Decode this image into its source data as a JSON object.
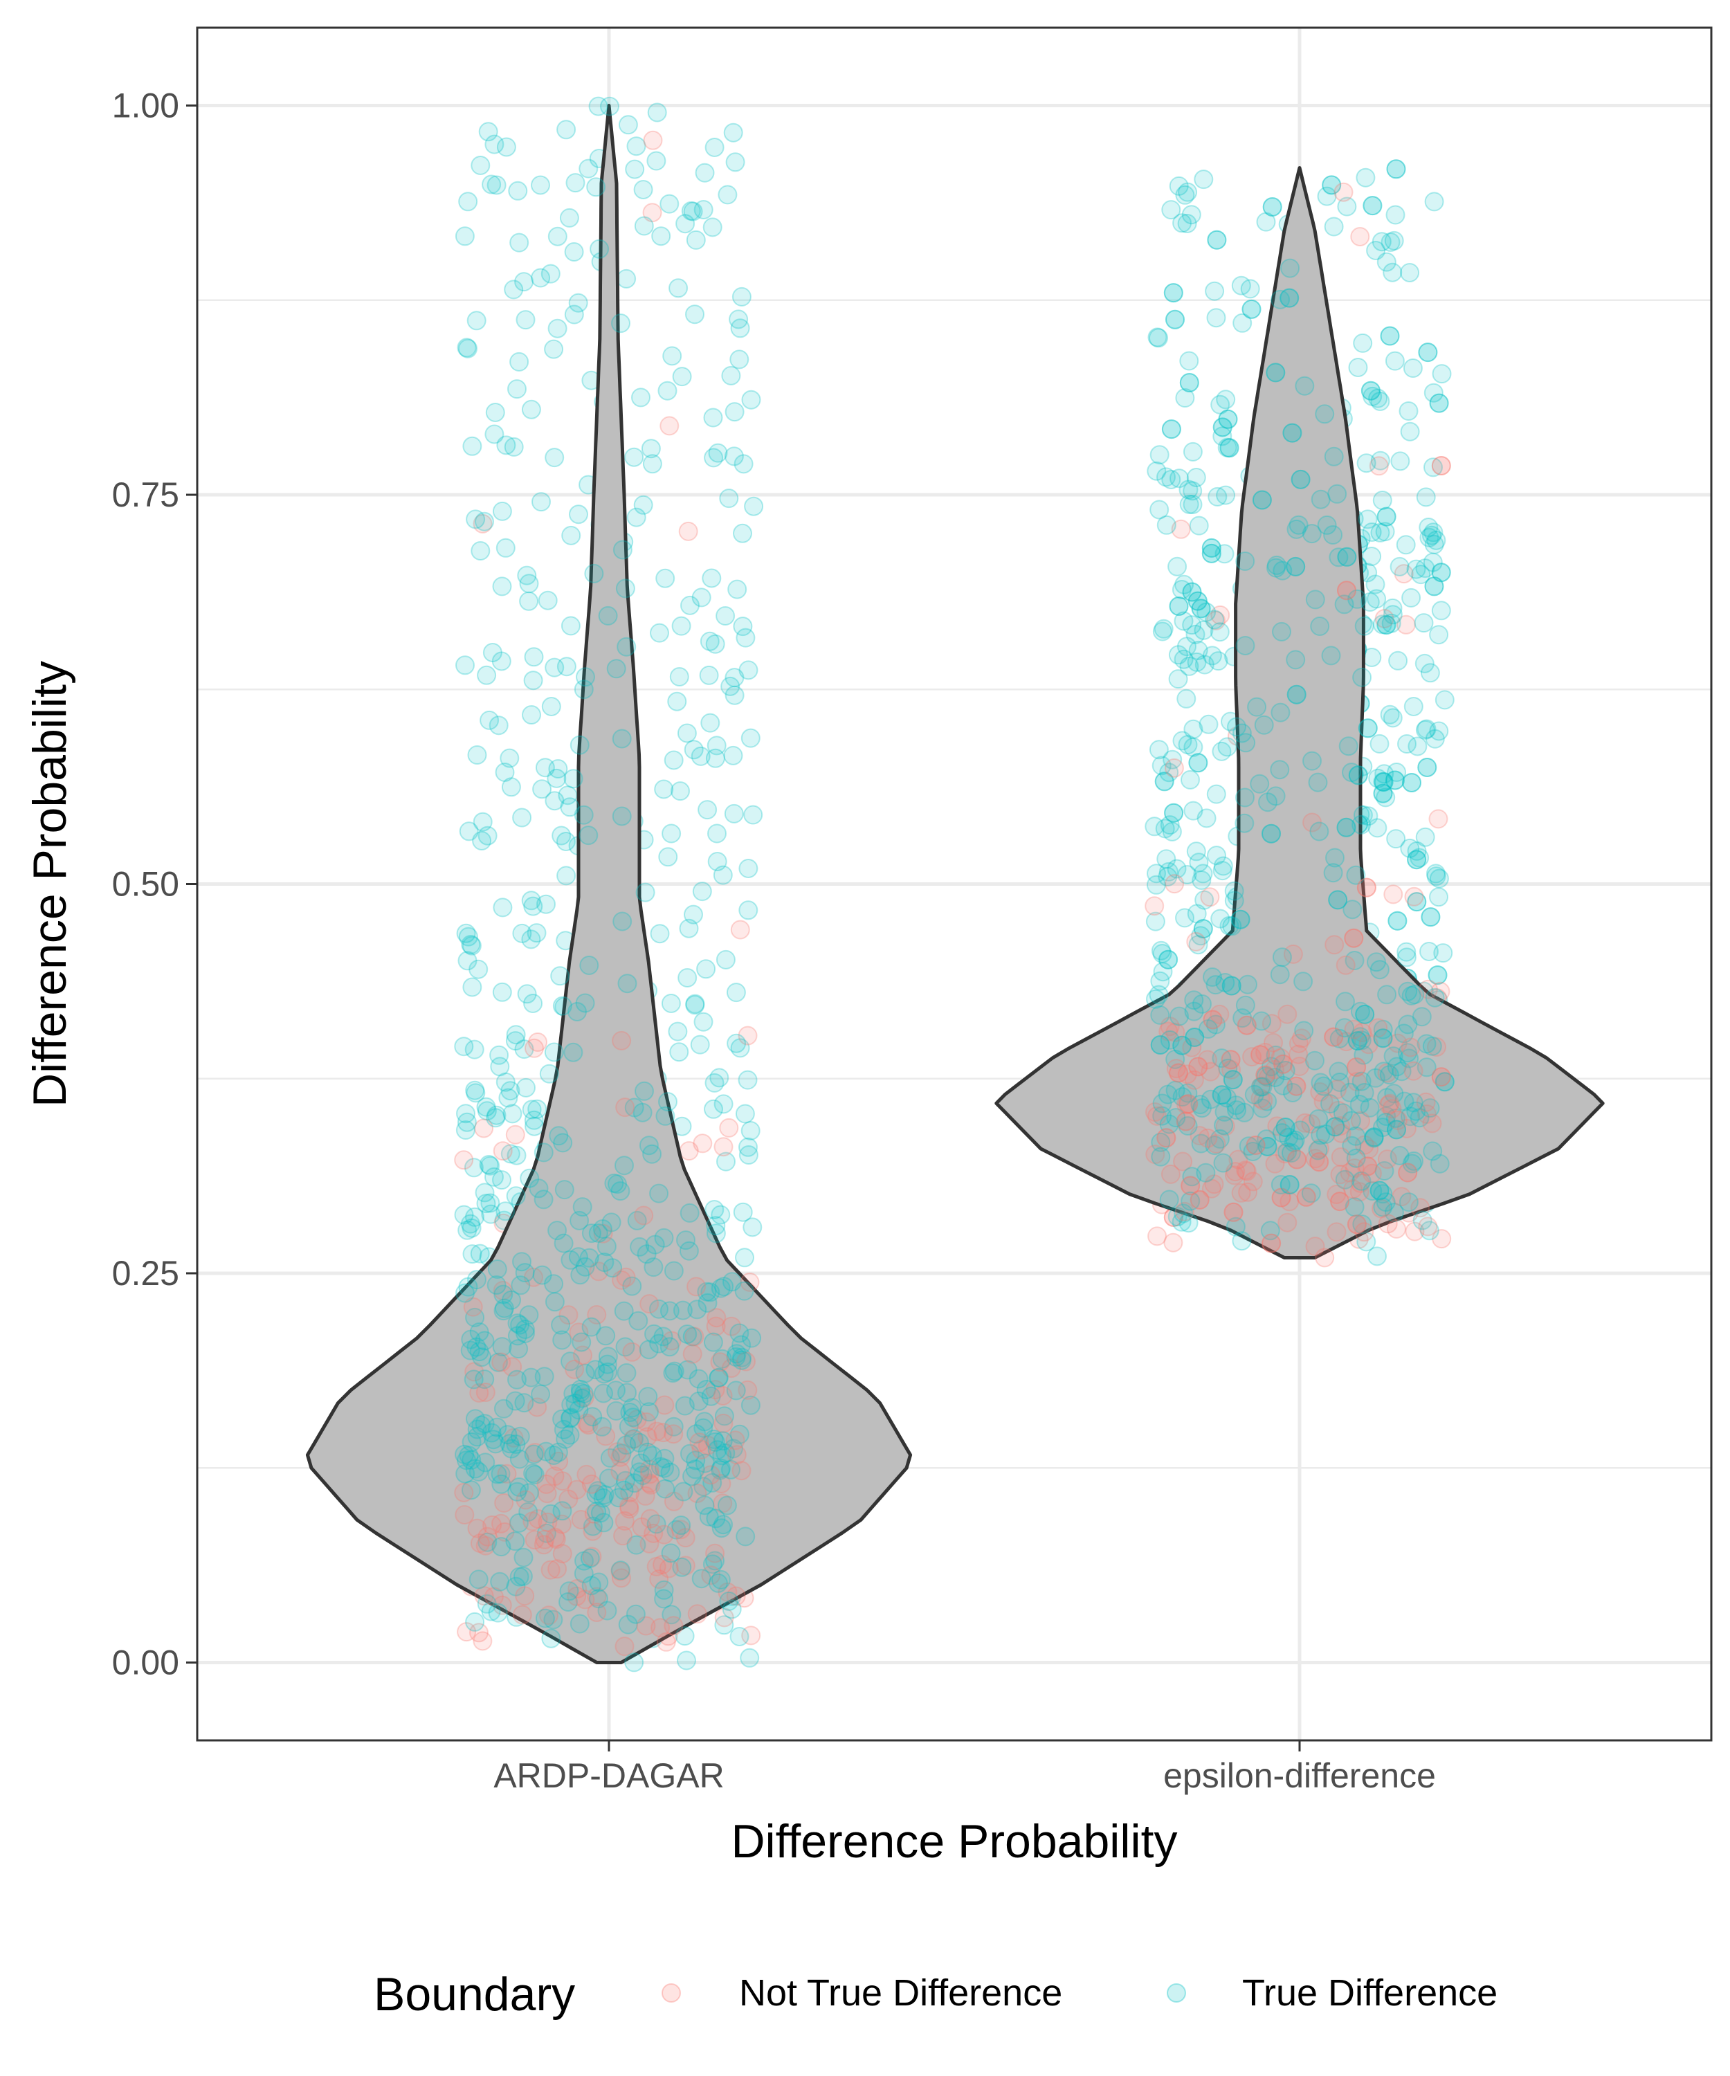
{
  "chart_data": {
    "type": "violin",
    "xlabel": "Difference Probability",
    "ylabel": "Difference Probability",
    "categories": [
      "ARDP-DAGAR",
      "epsilon-difference"
    ],
    "ylim": [
      -0.05,
      1.05
    ],
    "y_ticks": [
      "0.00",
      "0.25",
      "0.50",
      "0.75",
      "1.00"
    ],
    "grid": true,
    "violins": [
      {
        "category": "ARDP-DAGAR",
        "y_min": 0.0,
        "y_max": 1.0,
        "mode": 0.13,
        "density_profile": [
          [
            0.0,
            0.04
          ],
          [
            0.02,
            0.22
          ],
          [
            0.05,
            0.5
          ],
          [
            0.09,
            0.82
          ],
          [
            0.13,
            1.0
          ],
          [
            0.17,
            0.88
          ],
          [
            0.21,
            0.62
          ],
          [
            0.26,
            0.38
          ],
          [
            0.32,
            0.24
          ],
          [
            0.38,
            0.17
          ],
          [
            0.45,
            0.13
          ],
          [
            0.49,
            0.1
          ],
          [
            0.52,
            0.1
          ],
          [
            0.58,
            0.1
          ],
          [
            0.64,
            0.08
          ],
          [
            0.69,
            0.06
          ],
          [
            0.75,
            0.05
          ],
          [
            0.85,
            0.03
          ],
          [
            0.95,
            0.025
          ],
          [
            1.0,
            0.0
          ]
        ]
      },
      {
        "category": "epsilon-difference",
        "y_min": 0.26,
        "y_max": 0.96,
        "mode": 0.36,
        "density_profile": [
          [
            0.26,
            0.05
          ],
          [
            0.28,
            0.25
          ],
          [
            0.3,
            0.55
          ],
          [
            0.33,
            0.85
          ],
          [
            0.36,
            1.0
          ],
          [
            0.39,
            0.8
          ],
          [
            0.43,
            0.42
          ],
          [
            0.47,
            0.22
          ],
          [
            0.52,
            0.2
          ],
          [
            0.58,
            0.2
          ],
          [
            0.63,
            0.21
          ],
          [
            0.68,
            0.21
          ],
          [
            0.74,
            0.19
          ],
          [
            0.8,
            0.15
          ],
          [
            0.86,
            0.1
          ],
          [
            0.92,
            0.05
          ],
          [
            0.96,
            0.0
          ]
        ]
      }
    ],
    "series": [
      {
        "name": "Not True Difference",
        "color": "#F8766D"
      },
      {
        "name": "True Difference",
        "color": "#00BFC4"
      }
    ],
    "points_note_values": {
      "ARDP-DAGAR": {
        "not_true_range": [
          0.0,
          0.35
        ],
        "true_range": [
          0.0,
          1.0
        ]
      },
      "epsilon-difference": {
        "not_true_range": [
          0.26,
          0.5
        ],
        "true_range": [
          0.26,
          0.96
        ]
      }
    }
  },
  "legend": {
    "title": "Boundary",
    "items": [
      {
        "label": "Not True Difference",
        "color": "#F8766D"
      },
      {
        "label": "True Difference",
        "color": "#00BFC4"
      }
    ],
    "placement": "bottom"
  },
  "colors": {
    "violin_fill": "#BEBEBE",
    "violin_stroke": "#333333",
    "grid": "#EBEBEB",
    "panel_border": "#333333"
  }
}
